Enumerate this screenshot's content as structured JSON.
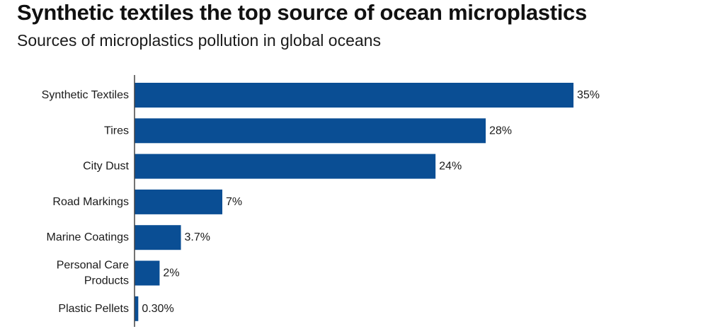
{
  "chart_data": {
    "type": "bar",
    "orientation": "horizontal",
    "title": "Synthetic textiles the top source of ocean microplastics",
    "subtitle": "Sources of microplastics pollution in global oceans",
    "categories": [
      [
        "Synthetic Textiles"
      ],
      [
        "Tires"
      ],
      [
        "City Dust"
      ],
      [
        "Road Markings"
      ],
      [
        "Marine Coatings"
      ],
      [
        "Personal Care",
        "Products"
      ],
      [
        "Plastic Pellets"
      ]
    ],
    "values": [
      35,
      28,
      24,
      7,
      3.7,
      2,
      0.3
    ],
    "data_labels": [
      "35%",
      "28%",
      "24%",
      "7%",
      "3.7%",
      "2%",
      "0.30%"
    ],
    "unit": "%",
    "xlim": [
      0,
      35
    ],
    "grid": false,
    "legend": "none",
    "bar_color": "#0a4e94",
    "axis_color": "#444444"
  }
}
